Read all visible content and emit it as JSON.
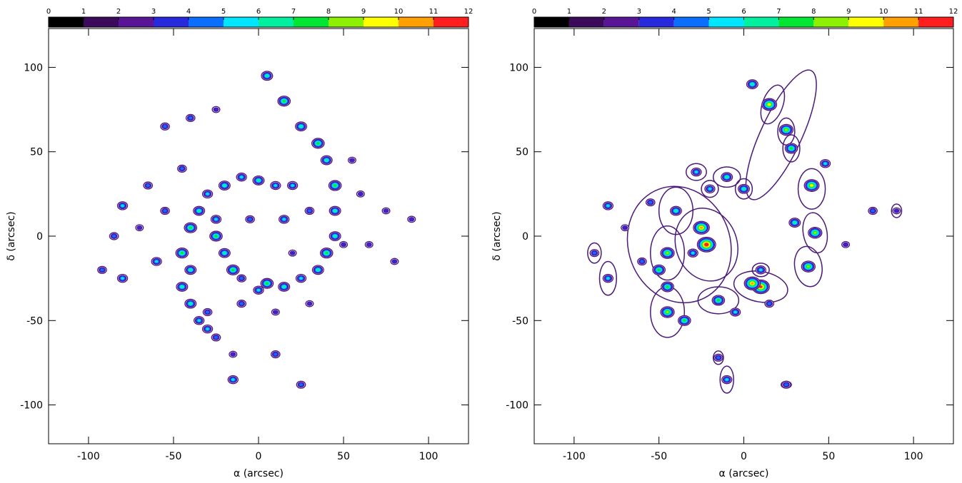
{
  "chart_data": [
    {
      "type": "contour",
      "xlabel": "α (arcsec)",
      "ylabel": "δ (arcsec)",
      "xlim": [
        -123.5,
        123.5
      ],
      "ylim": [
        -123,
        123
      ],
      "xticks": [
        -100,
        -50,
        0,
        50,
        100
      ],
      "yticks": [
        -100,
        -50,
        0,
        50,
        100
      ],
      "colorbar": {
        "ticks": [
          0,
          1,
          2,
          3,
          4,
          5,
          6,
          7,
          8,
          9,
          10,
          11,
          12
        ],
        "colors": [
          "#000000",
          "#3c0a5a",
          "#5a1496",
          "#2828dc",
          "#0a6eff",
          "#00e6ff",
          "#00f0a0",
          "#00e632",
          "#8cf000",
          "#ffff00",
          "#ffa000",
          "#ff1e1e"
        ]
      },
      "outline_color": "#4b1a7a",
      "x": [
        5,
        15,
        25,
        35,
        40,
        45,
        45,
        45,
        40,
        35,
        25,
        15,
        5,
        0,
        -10,
        0,
        10,
        -20,
        -30,
        -35,
        -40,
        -45,
        -40,
        -45,
        -40,
        -35,
        -30,
        -25,
        -25,
        -20,
        -15,
        -25,
        -10,
        15,
        20,
        -5,
        -80,
        -80,
        -92,
        -85,
        -60,
        -55,
        -65,
        -40,
        -55,
        -25,
        10,
        -15,
        -15,
        25,
        -10,
        10,
        30,
        60,
        75,
        80,
        90,
        65,
        -70,
        -30,
        50,
        55,
        -45,
        20,
        30
      ],
      "y": [
        95,
        80,
        65,
        55,
        45,
        30,
        15,
        0,
        -10,
        -20,
        -25,
        -30,
        -28,
        -32,
        35,
        33,
        30,
        30,
        25,
        15,
        5,
        -10,
        -20,
        -30,
        -40,
        -50,
        -55,
        -60,
        0,
        -10,
        -20,
        10,
        -25,
        10,
        30,
        10,
        18,
        -25,
        -20,
        0,
        -15,
        15,
        30,
        70,
        65,
        75,
        -70,
        -70,
        -85,
        -88,
        -40,
        -45,
        -40,
        25,
        15,
        -15,
        10,
        -5,
        5,
        -45,
        -5,
        45,
        40,
        -10,
        15
      ],
      "values": [
        6,
        7,
        6,
        7,
        6,
        7,
        6,
        6,
        7,
        6,
        5,
        6,
        7,
        5,
        5,
        6,
        5,
        6,
        5,
        6,
        7,
        7,
        6,
        6,
        6,
        5,
        5,
        4,
        7,
        6,
        7,
        5,
        4,
        5,
        5,
        4,
        5,
        5,
        4,
        4,
        5,
        4,
        4,
        4,
        4,
        3,
        4,
        3,
        5,
        4,
        4,
        3,
        3,
        3,
        3,
        3,
        3,
        3,
        3,
        4,
        3,
        3,
        4,
        3,
        4
      ]
    },
    {
      "type": "contour",
      "xlabel": "α (arcsec)",
      "ylabel": "δ (arcsec)",
      "xlim": [
        -123.5,
        123.5
      ],
      "ylim": [
        -123,
        123
      ],
      "xticks": [
        -100,
        -50,
        0,
        50,
        100
      ],
      "yticks": [
        -100,
        -50,
        0,
        50,
        100
      ],
      "colorbar": {
        "ticks": [
          0,
          1,
          2,
          3,
          4,
          5,
          6,
          7,
          8,
          9,
          10,
          11,
          12
        ],
        "colors": [
          "#000000",
          "#3c0a5a",
          "#5a1496",
          "#2828dc",
          "#0a6eff",
          "#00e6ff",
          "#00f0a0",
          "#00e632",
          "#8cf000",
          "#ffff00",
          "#ffa000",
          "#ff1e1e"
        ]
      },
      "outline_color": "#4b1a7a",
      "x": [
        5,
        15,
        25,
        28,
        40,
        42,
        38,
        10,
        5,
        -15,
        -22,
        -25,
        -45,
        -50,
        -45,
        -10,
        -28,
        0,
        -20,
        -80,
        -88,
        -10,
        90,
        25,
        -15,
        10,
        -40,
        -45,
        -35,
        -5,
        -55,
        -60,
        30,
        -30,
        -70,
        15,
        60,
        76,
        -80,
        48
      ],
      "y": [
        90,
        78,
        63,
        52,
        30,
        2,
        -18,
        -30,
        -28,
        -38,
        -5,
        5,
        -10,
        -20,
        -45,
        35,
        38,
        28,
        28,
        -25,
        -10,
        -85,
        15,
        -88,
        -72,
        -20,
        15,
        -30,
        -50,
        -45,
        20,
        -15,
        8,
        -10,
        5,
        -40,
        -5,
        15,
        18,
        43
      ],
      "values": [
        6,
        9,
        8,
        7,
        9,
        8,
        8,
        11,
        10,
        7,
        12,
        10,
        8,
        7,
        8,
        6,
        5,
        6,
        5,
        5,
        4,
        5,
        3,
        4,
        4,
        5,
        6,
        7,
        7,
        5,
        4,
        4,
        6,
        5,
        3,
        4,
        3,
        4,
        5,
        5
      ],
      "ellipses": {
        "x": [
          22,
          17,
          25,
          28,
          40,
          42,
          38,
          10,
          -15,
          -22,
          -45,
          -38,
          -45,
          -10,
          -28,
          0,
          -20,
          -80,
          -88,
          -10,
          90,
          25,
          -15,
          10,
          -40
        ],
        "y": [
          60,
          78,
          62,
          52,
          28,
          2,
          -18,
          -30,
          -38,
          -5,
          -10,
          -5,
          -45,
          35,
          38,
          28,
          28,
          -25,
          -10,
          -85,
          15,
          -88,
          -72,
          -20,
          15
        ],
        "rx": [
          12,
          6,
          5,
          5,
          8,
          7,
          8,
          16,
          12,
          18,
          10,
          30,
          10,
          8,
          6,
          5,
          5,
          5,
          4,
          4,
          3,
          3,
          3,
          5,
          10
        ],
        "ry": [
          42,
          12,
          8,
          8,
          12,
          12,
          12,
          9,
          8,
          22,
          16,
          35,
          15,
          6,
          5,
          6,
          5,
          10,
          6,
          8,
          4,
          2,
          4,
          4,
          14
        ],
        "angle": [
          -25,
          -20,
          0,
          0,
          0,
          10,
          10,
          -10,
          0,
          20,
          0,
          20,
          0,
          0,
          0,
          0,
          0,
          0,
          0,
          0,
          0,
          0,
          0,
          0,
          0
        ]
      }
    }
  ]
}
